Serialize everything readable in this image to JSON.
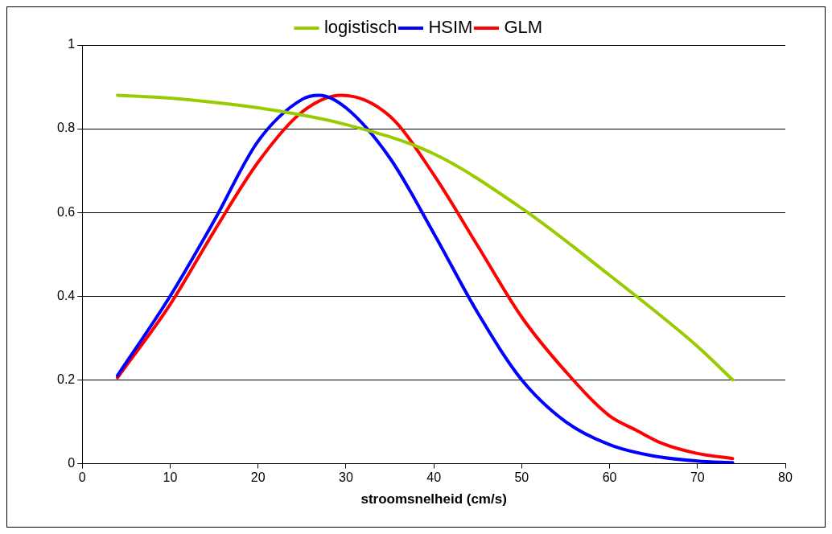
{
  "chart_data": {
    "type": "line",
    "xlabel": "stroomsnelheid (cm/s)",
    "xlim": [
      0,
      80
    ],
    "xticks": [
      0,
      10,
      20,
      30,
      40,
      50,
      60,
      70,
      80
    ],
    "ylim": [
      0,
      1
    ],
    "yticks": [
      0,
      0.2,
      0.4,
      0.6,
      0.8,
      1
    ],
    "grid": "y",
    "legend": "top",
    "marker": "none",
    "line_style": "solid",
    "series": [
      {
        "name": "logistisch",
        "color": "#99cc00",
        "x": [
          4,
          10,
          20,
          30,
          40,
          50,
          60,
          70,
          74
        ],
        "values": [
          0.88,
          0.873,
          0.85,
          0.81,
          0.74,
          0.61,
          0.45,
          0.28,
          0.2
        ]
      },
      {
        "name": "HSIM",
        "color": "#0000ff",
        "x": [
          4,
          10,
          15,
          20,
          25,
          27,
          30,
          35,
          40,
          45,
          50,
          55,
          60,
          65,
          70,
          74
        ],
        "values": [
          0.21,
          0.4,
          0.58,
          0.77,
          0.87,
          0.88,
          0.85,
          0.73,
          0.55,
          0.36,
          0.2,
          0.1,
          0.045,
          0.018,
          0.006,
          0.002
        ]
      },
      {
        "name": "GLM",
        "color": "#ff0000",
        "x": [
          4,
          10,
          15,
          20,
          25,
          29.5,
          35,
          40,
          45,
          50,
          55,
          60,
          63,
          66,
          70,
          74
        ],
        "values": [
          0.205,
          0.38,
          0.555,
          0.72,
          0.84,
          0.88,
          0.83,
          0.69,
          0.52,
          0.35,
          0.22,
          0.114,
          0.08,
          0.048,
          0.024,
          0.012
        ]
      }
    ]
  }
}
